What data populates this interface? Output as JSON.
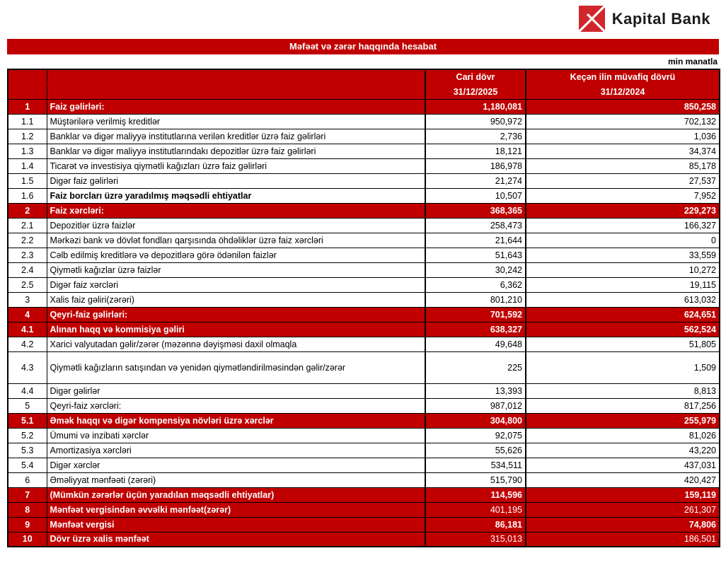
{
  "header": {
    "logo_text": "Kapital Bank",
    "title": "Məfəət və zərər haqqında hesabat",
    "unit_note": "min manatla"
  },
  "colors": {
    "table_red": "#C00000",
    "logo_red": "#D0262C",
    "border_black": "#000000"
  },
  "table": {
    "columns": {
      "current_label": "Cari dövr",
      "current_date": "31/12/2025",
      "previous_label": "Keçən ilin müvafiq dövrü",
      "previous_date": "31/12/2024"
    },
    "rows": [
      {
        "no": "1",
        "label": "Faiz gəlirləri:",
        "current": "1,180,081",
        "previous": "850,258",
        "style": "red",
        "values_bold": true
      },
      {
        "no": "1.1",
        "label": "Müştərilərə verilmiş kreditlər",
        "current": "950,972",
        "previous": "702,132",
        "style": "white"
      },
      {
        "no": "1.2",
        "label": "Banklar və digər maliyyə institutlarına verilən kreditlər üzrə faiz gəlirləri",
        "current": "2,736",
        "previous": "1,036",
        "style": "white"
      },
      {
        "no": "1.3",
        "label": "Banklar və digər maliyyə institutlarındakı depozitlər üzrə faiz gəlirləri",
        "current": "18,121",
        "previous": "34,374",
        "style": "white"
      },
      {
        "no": "1.4",
        "label": "Ticarət və investisiya qiymətli kağızları üzrə faiz gəlirləri",
        "current": "186,978",
        "previous": "85,178",
        "style": "white"
      },
      {
        "no": "1.5",
        "label": "Digər faiz gəlirləri",
        "current": "21,274",
        "previous": "27,537",
        "style": "white"
      },
      {
        "no": "1.6",
        "label": "Faiz borcları üzrə yaradılmış məqsədli ehtiyatlar",
        "current": "10,507",
        "previous": "7,952",
        "style": "white",
        "label_bold": true
      },
      {
        "no": "2",
        "label": "Faiz xərcləri:",
        "current": "368,365",
        "previous": "229,273",
        "style": "red",
        "values_bold": true
      },
      {
        "no": "2.1",
        "label": "Depozitlər üzrə faizlər",
        "current": "258,473",
        "previous": "166,327",
        "style": "white"
      },
      {
        "no": "2.2",
        "label": "Mərkəzi bank və dövlət fondları qarşısında öhdəliklər üzrə faiz xərcləri",
        "current": "21,644",
        "previous": "0",
        "style": "white"
      },
      {
        "no": "2.3",
        "label": "Cəlb edilmiş kreditlərə və depozitlərə görə ödənilən faizlər",
        "current": "51,643",
        "previous": "33,559",
        "style": "white"
      },
      {
        "no": "2.4",
        "label": "Qiymətli kağızlar üzrə faizlər",
        "current": "30,242",
        "previous": "10,272",
        "style": "white"
      },
      {
        "no": "2.5",
        "label": "Digər faiz xərcləri",
        "current": "6,362",
        "previous": "19,115",
        "style": "white"
      },
      {
        "no": "3",
        "label": "Xalis faiz gəliri(zərəri)",
        "current": "801,210",
        "previous": "613,032",
        "style": "white"
      },
      {
        "no": "4",
        "label": "Qeyri-faiz gəlirləri:",
        "current": "701,592",
        "previous": "624,651",
        "style": "red",
        "values_bold": true
      },
      {
        "no": "4.1",
        "label": "Alınan haqq və kommisiya gəliri",
        "current": "638,327",
        "previous": "562,524",
        "style": "red",
        "values_bold": true
      },
      {
        "no": "4.2",
        "label": "Xarici valyutadan gəlir/zərər (məzənnə dəyişməsi daxil olmaqla",
        "current": "49,648",
        "previous": "51,805",
        "style": "white"
      },
      {
        "no": "4.3",
        "label": "Qiymətli kağızların satışından və yenidən qiymətləndirilməsindən gəlir/zərər",
        "current": "225",
        "previous": "1,509",
        "style": "white",
        "tall": true
      },
      {
        "no": "4.4",
        "label": "Digər gəlirlər",
        "current": "13,393",
        "previous": "8,813",
        "style": "white"
      },
      {
        "no": "5",
        "label": "Qeyri-faiz xərcləri:",
        "current": "987,012",
        "previous": "817,256",
        "style": "white"
      },
      {
        "no": "5.1",
        "label": "Əmək haqqı və digər kompensiya növləri üzrə xərclər",
        "current": "304,800",
        "previous": "255,979",
        "style": "red",
        "values_bold": true
      },
      {
        "no": "5.2",
        "label": "Ümumi və inzibati xərclər",
        "current": "92,075",
        "previous": "81,026",
        "style": "white"
      },
      {
        "no": "5.3",
        "label": "Amortizasiya xərcləri",
        "current": "55,626",
        "previous": "43,220",
        "style": "white"
      },
      {
        "no": "5.4",
        "label": "Digər xərclər",
        "current": "534,511",
        "previous": "437,031",
        "style": "white"
      },
      {
        "no": "6",
        "label": "Əməliyyat mənfəəti (zərəri)",
        "current": "515,790",
        "previous": "420,427",
        "style": "white"
      },
      {
        "no": "7",
        "label": "(Mümkün zərərlər üçün yaradılan məqsədli ehtiyatlar)",
        "current": "114,596",
        "previous": "159,119",
        "style": "red",
        "values_bold": true
      },
      {
        "no": "8",
        "label": "Mənfəət vergisindən əvvəlki mənfəət(zərər)",
        "current": "401,195",
        "previous": "261,307",
        "style": "red",
        "values_bold": false
      },
      {
        "no": "9",
        "label": "Mənfəət vergisi",
        "current": "86,181",
        "previous": "74,806",
        "style": "red",
        "values_bold": true
      },
      {
        "no": "10",
        "label": "Dövr üzrə xalis mənfəət",
        "current": "315,013",
        "previous": "186,501",
        "style": "red",
        "values_bold": false
      }
    ]
  }
}
